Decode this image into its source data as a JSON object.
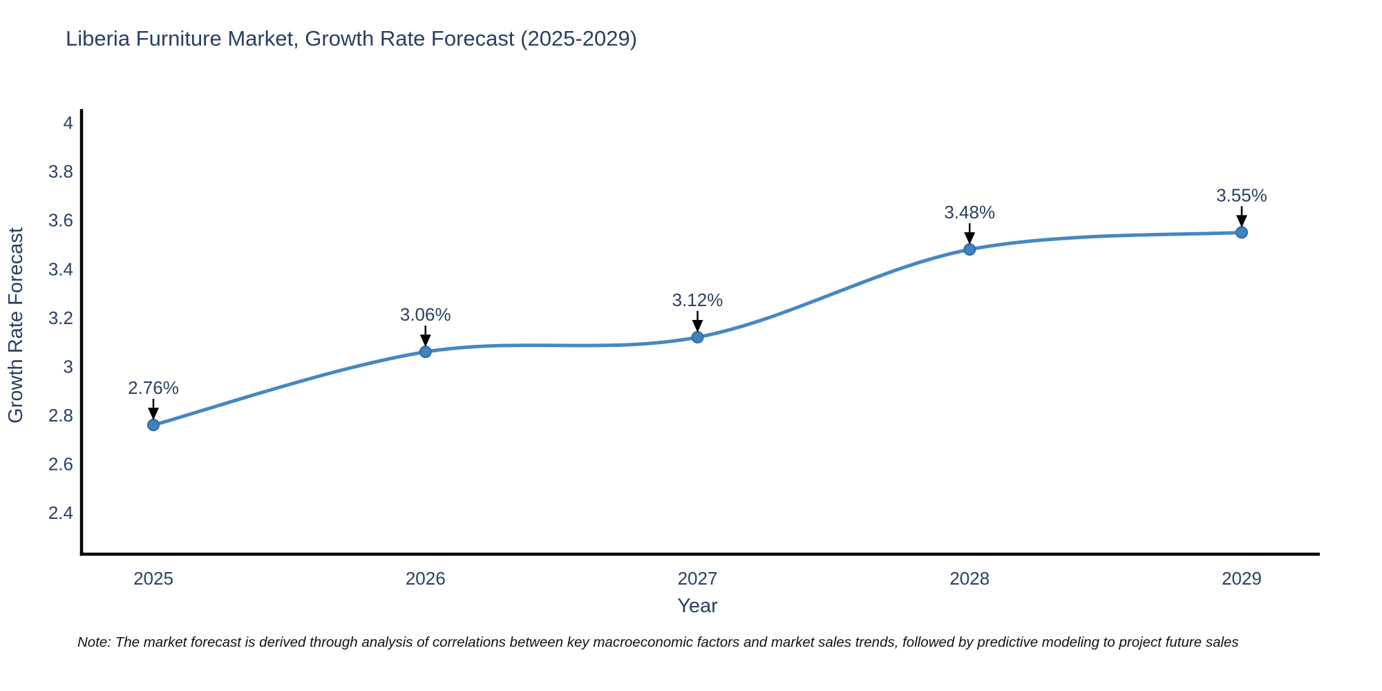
{
  "page": {
    "title": "Liberia Furniture Market, Growth Rate Forecast (2025-2029)",
    "note": "Note: The market forecast is derived through analysis of correlations between key macroeconomic factors and market sales trends, followed by predictive modeling to project future sales"
  },
  "colors": {
    "title_text": "#2a3f5f",
    "axis_text": "#2a3f5f",
    "annotation_text": "#2a3f5f",
    "note_text": "#111111",
    "line": "#4687c0",
    "marker_fill": "#3f84bd",
    "marker_edge": "#2f6ba3",
    "axis_line": "#000000",
    "arrow": "#000000",
    "background": "#ffffff"
  },
  "chart_data": {
    "type": "line",
    "title": "Liberia Furniture Market, Growth Rate Forecast (2025-2029)",
    "xlabel": "Year",
    "ylabel": "Growth Rate Forecast",
    "x": [
      2025,
      2026,
      2027,
      2028,
      2029
    ],
    "x_tick_labels": [
      "2025",
      "2026",
      "2027",
      "2028",
      "2029"
    ],
    "series": [
      {
        "name": "Growth Rate Forecast",
        "values": [
          2.76,
          3.06,
          3.12,
          3.48,
          3.55
        ],
        "point_labels": [
          "2.76%",
          "3.06%",
          "3.12%",
          "3.48%",
          "3.55%"
        ]
      }
    ],
    "y_ticks": [
      2.4,
      2.6,
      2.8,
      3.0,
      3.2,
      3.4,
      3.6,
      3.8,
      4.0
    ],
    "y_tick_labels": [
      "2.4",
      "2.6",
      "2.8",
      "3",
      "3.2",
      "3.4",
      "3.6",
      "3.8",
      "4"
    ],
    "ylim": [
      2.23,
      4.05
    ],
    "grid": false,
    "legend": false,
    "line_shape": "spline",
    "markers": true,
    "annotation_arrows": true
  }
}
